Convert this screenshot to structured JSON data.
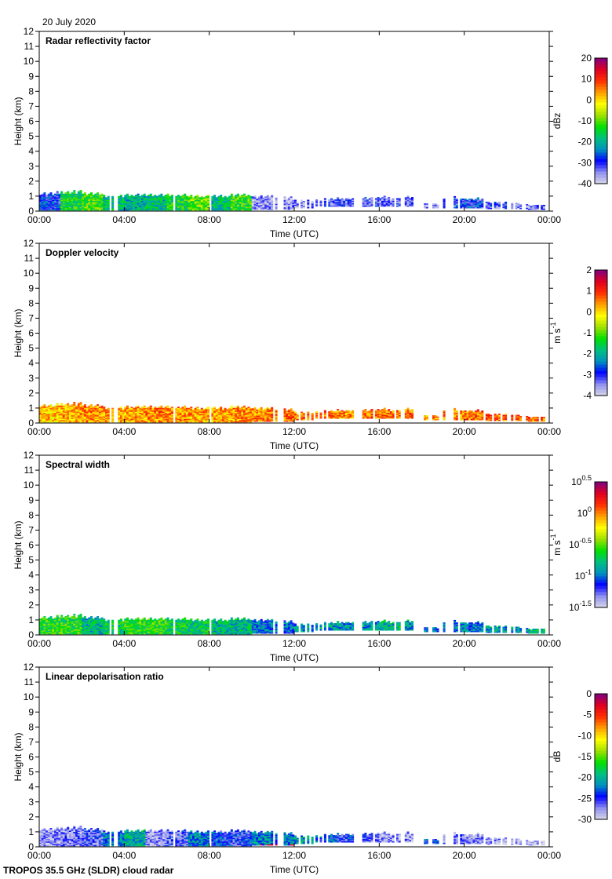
{
  "date": "20 July 2020",
  "footer": "TROPOS 35.5 GHz (SLDR) cloud radar",
  "chart_data": {
    "type": "heatmap",
    "xlabel": "Time (UTC)",
    "ylabel": "Height (km)",
    "xlim": [
      0,
      24
    ],
    "ylim": [
      0,
      12
    ],
    "x_ticks": [
      "00:00",
      "04:00",
      "08:00",
      "12:00",
      "16:00",
      "20:00",
      "00:00"
    ],
    "y_ticks": [
      "0",
      "1",
      "2",
      "3",
      "4",
      "5",
      "6",
      "7",
      "8",
      "9",
      "10",
      "11",
      "12"
    ],
    "cloud_layer": {
      "hours": [
        0,
        1,
        2,
        3,
        4,
        5,
        6,
        7,
        8,
        9,
        10,
        11,
        12,
        13,
        14,
        15,
        16,
        17,
        18,
        19,
        20,
        21,
        22,
        23
      ],
      "top_km": [
        1.2,
        1.3,
        1.2,
        1.0,
        1.1,
        1.1,
        1.1,
        1.0,
        1.0,
        1.1,
        1.0,
        0.9,
        0.7,
        0.8,
        0.85,
        0.9,
        0.9,
        0.9,
        0.5,
        0.9,
        0.8,
        0.6,
        0.5,
        0.4
      ],
      "base_km": [
        0.05,
        0.05,
        0.05,
        0.05,
        0.05,
        0.05,
        0.05,
        0.05,
        0.05,
        0.05,
        0.1,
        0.1,
        0.2,
        0.3,
        0.3,
        0.3,
        0.3,
        0.3,
        0.2,
        0.2,
        0.2,
        0.15,
        0.15,
        0.1
      ],
      "coverage": [
        1,
        1,
        0.95,
        0.6,
        0.9,
        0.85,
        0.95,
        0.95,
        0.9,
        0.95,
        0.85,
        0.7,
        0.5,
        0.8,
        0.8,
        0.85,
        0.85,
        0.7,
        0.4,
        0.8,
        0.8,
        0.7,
        0.8,
        0.8
      ]
    },
    "panels": [
      {
        "title": "Radar reflectivity factor",
        "unit": "dBz",
        "range": [
          -40,
          20
        ],
        "log": false,
        "colorbar_ticks": [
          "20",
          "10",
          "0",
          "-10",
          "-20",
          "-30",
          "-40"
        ],
        "hourly_mean": [
          -28,
          -15,
          -12,
          -18,
          -20,
          -18,
          -15,
          -10,
          -18,
          -12,
          -36,
          -36,
          -35,
          -32,
          -32,
          -32,
          -33,
          -34,
          -36,
          -30,
          -28,
          -32,
          -34,
          -34
        ]
      },
      {
        "title": "Doppler velocity",
        "unit": "m s",
        "unit_exp": "-1",
        "range": [
          -4,
          2
        ],
        "log": false,
        "colorbar_ticks": [
          "2",
          "1",
          "0",
          "-1",
          "-2",
          "-3",
          "-4"
        ],
        "hourly_mean": [
          0.2,
          0.3,
          0.4,
          0.3,
          0.4,
          0.5,
          0.4,
          0.3,
          0.3,
          0.4,
          0.5,
          0.6,
          0.6,
          0.5,
          0.5,
          0.6,
          0.6,
          0.6,
          0.3,
          0.5,
          0.6,
          0.7,
          0.7,
          0.6
        ]
      },
      {
        "title": "Spectral width",
        "unit": "m s",
        "unit_exp": "-1",
        "range": [
          -1.5,
          0.5
        ],
        "log": true,
        "colorbar_ticks": [
          {
            "base": "10",
            "exp": "0.5"
          },
          {
            "base": "10",
            "exp": "0"
          },
          {
            "base": "10",
            "exp": "-0.5"
          },
          {
            "base": "10",
            "exp": "-1"
          },
          {
            "base": "10",
            "exp": "-1.5"
          }
        ],
        "hourly_mean": [
          -0.6,
          -0.6,
          -0.8,
          -0.7,
          -0.6,
          -0.6,
          -0.7,
          -0.7,
          -0.8,
          -0.8,
          -1.0,
          -1.0,
          -0.9,
          -0.9,
          -0.9,
          -0.9,
          -0.8,
          -0.9,
          -1.0,
          -1.0,
          -1.0,
          -0.9,
          -0.9,
          -0.8
        ]
      },
      {
        "title": "Linear depolarisation ratio",
        "unit": "dB",
        "range": [
          -30,
          0
        ],
        "log": false,
        "colorbar_ticks": [
          "0",
          "-5",
          "-10",
          "-15",
          "-20",
          "-25",
          "-30"
        ],
        "hourly_mean": [
          -28,
          -27,
          -26,
          -22,
          -20,
          -28,
          -26,
          -22,
          -24,
          -25,
          -22,
          -22,
          -21,
          -23,
          -25,
          -26,
          -28,
          -28,
          -24,
          -27,
          -28,
          -28,
          -29,
          -29
        ]
      }
    ],
    "colormap": [
      "#d8d8e8",
      "#9090f0",
      "#0000ff",
      "#0090c0",
      "#00c080",
      "#00e000",
      "#a0e000",
      "#ffff00",
      "#ffa000",
      "#ff3000",
      "#e00020",
      "#800080"
    ]
  }
}
